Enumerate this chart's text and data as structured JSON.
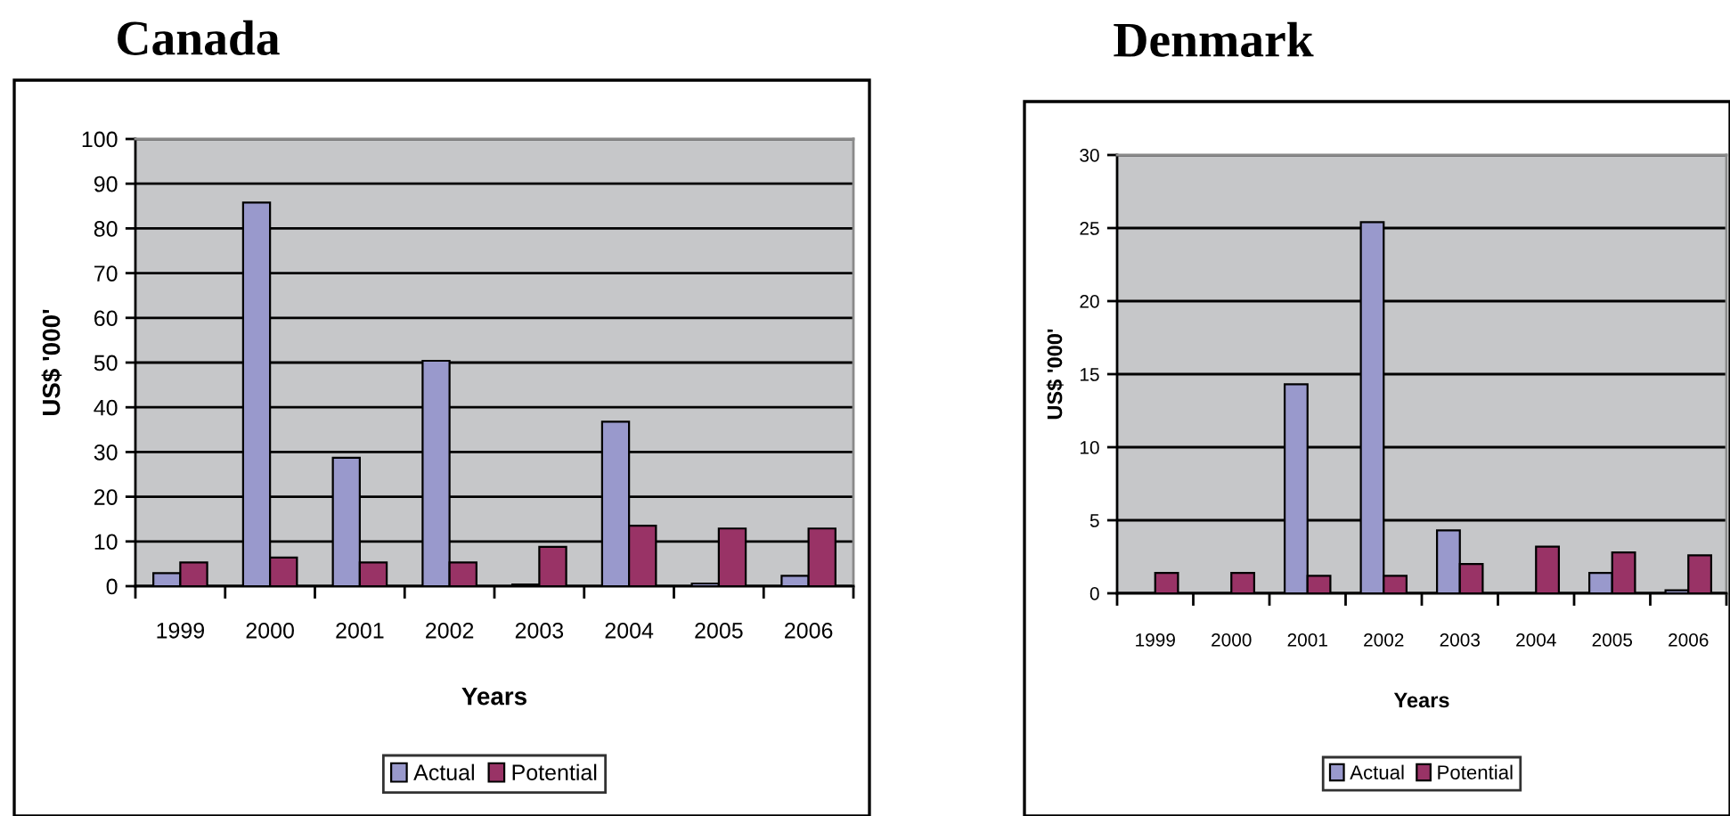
{
  "chart_data": [
    {
      "type": "bar",
      "title": "Canada",
      "xlabel": "Years",
      "ylabel": "US$ '000'",
      "categories": [
        "1999",
        "2000",
        "2001",
        "2002",
        "2003",
        "2004",
        "2005",
        "2006"
      ],
      "series": [
        {
          "name": "Actual",
          "color": "#9999cc",
          "values": [
            2.9,
            85.8,
            28.7,
            50.4,
            0.4,
            36.8,
            0.6,
            2.3
          ]
        },
        {
          "name": "Potential",
          "color": "#993366",
          "values": [
            5.3,
            6.4,
            5.3,
            5.3,
            8.8,
            13.5,
            12.9,
            12.9
          ]
        }
      ],
      "ylim": [
        0,
        100
      ],
      "yticks": [
        0,
        10,
        20,
        30,
        40,
        50,
        60,
        70,
        80,
        90,
        100
      ],
      "grid": "y",
      "legend": "bottom"
    },
    {
      "type": "bar",
      "title": "Denmark",
      "xlabel": "Years",
      "ylabel": "US$ '000'",
      "categories": [
        "1999",
        "2000",
        "2001",
        "2002",
        "2003",
        "2004",
        "2005",
        "2006"
      ],
      "series": [
        {
          "name": "Actual",
          "color": "#9999cc",
          "values": [
            null,
            null,
            14.3,
            25.4,
            4.3,
            null,
            1.4,
            0.2
          ]
        },
        {
          "name": "Potential",
          "color": "#993366",
          "values": [
            1.4,
            1.4,
            1.2,
            1.2,
            2.0,
            3.2,
            2.8,
            2.6
          ]
        }
      ],
      "ylim": [
        0,
        30
      ],
      "yticks": [
        0,
        5,
        10,
        15,
        20,
        25,
        30
      ],
      "grid": "y",
      "legend": "bottom"
    }
  ]
}
